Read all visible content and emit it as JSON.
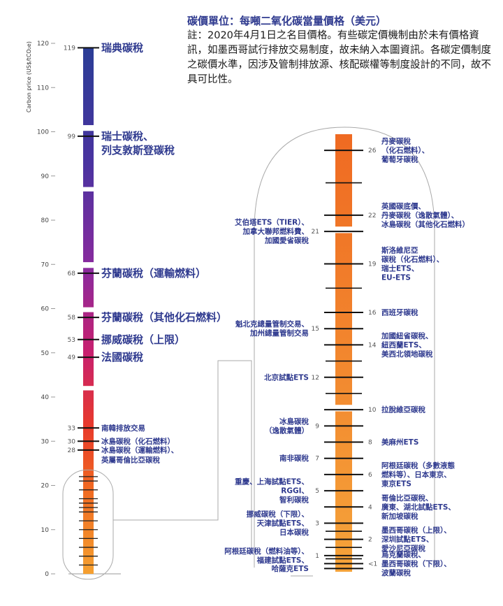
{
  "note": {
    "title": "碳價單位：每噸二氧化碳當量價格（美元）",
    "body": "註：2020年4月1日之名目價格。有些碳定價機制由於未有價格資訊，如墨西哥試行排放交易制度，故未納入本圖資訊。各碳定價制度之碳價水準，因涉及管制排放源、核配碳權等制度設計的不同，故不具可比性。"
  },
  "colors": {
    "gradient": [
      "#2b3d96",
      "#4a33a0",
      "#8a2a9e",
      "#c8206e",
      "#e83a2b",
      "#f06a22",
      "#f5a030"
    ],
    "label": "#2f3a8f"
  },
  "chart_data": [
    {
      "type": "bar",
      "orientation": "vertical-scale",
      "ylabel": "Carbon price (US$/tCO₂e)",
      "ylim": [
        0,
        120
      ],
      "yticks": [
        0,
        10,
        20,
        30,
        40,
        50,
        60,
        70,
        80,
        90,
        100,
        110,
        120
      ],
      "points": [
        {
          "value": 119,
          "value_label": "119",
          "label": "瑞典碳稅",
          "size": "big"
        },
        {
          "value": 99,
          "value_label": "99",
          "label": "瑞士碳稅、\n列支敦斯登碳稅",
          "size": "big"
        },
        {
          "value": 68,
          "value_label": "68",
          "label": "芬蘭碳稅（運輸燃料）",
          "size": "big"
        },
        {
          "value": 58,
          "value_label": "58",
          "label": "芬蘭碳稅（其他化石燃料）",
          "size": "big"
        },
        {
          "value": 53,
          "value_label": "53",
          "label": "挪威碳稅（上限）",
          "size": "big"
        },
        {
          "value": 49,
          "value_label": "49",
          "label": "法國碳稅",
          "size": "big"
        },
        {
          "value": 33,
          "value_label": "33",
          "label": "南韓排放交易",
          "size": "small"
        },
        {
          "value": 30,
          "value_label": "30",
          "label": "冰島碳稅（化石燃料）",
          "size": "small"
        },
        {
          "value": 28,
          "value_label": "28",
          "label": "冰島碳稅（運輸燃料）、\n英屬哥倫比亞碳稅",
          "size": "small"
        }
      ],
      "minor_ticks": [
        2,
        4,
        6,
        8,
        10,
        12,
        14,
        15,
        16,
        17,
        19,
        21,
        22
      ]
    },
    {
      "type": "bar",
      "orientation": "vertical-scale-zoom",
      "ylim": [
        0,
        27
      ],
      "points": [
        {
          "value": 26,
          "value_label": "26",
          "label": "丹麥碳稅\n（化石燃料）、\n葡萄牙碳稅",
          "side": "right"
        },
        {
          "value": 22,
          "value_label": "22",
          "label": "英國碳底價、\n丹麥碳稅（逸散氣體）、\n冰島碳稅（其他化石燃料）",
          "side": "right"
        },
        {
          "value": 21,
          "value_label": "21",
          "label": "艾伯塔ETS（TIER）、\n加拿大聯邦燃料費、\n加國愛省碳稅",
          "side": "left"
        },
        {
          "value": 19,
          "value_label": "19",
          "label": "斯洛維尼亞\n碳稅（化石燃料）、\n瑞士ETS、\nEU-ETS",
          "side": "right"
        },
        {
          "value": 16,
          "value_label": "16",
          "label": "西班牙碳稅",
          "side": "right"
        },
        {
          "value": 15,
          "value_label": "15",
          "label": "魁北克總量管制交易、\n加州總量管制交易",
          "side": "left"
        },
        {
          "value": 14,
          "value_label": "14",
          "label": "加國紐省碳稅、\n紐西蘭ETS、\n美西北領地碳稅",
          "side": "right"
        },
        {
          "value": 12,
          "value_label": "12",
          "label": "北京試點ETS",
          "side": "left"
        },
        {
          "value": 10,
          "value_label": "10",
          "label": "拉脫維亞碳稅",
          "side": "right"
        },
        {
          "value": 9,
          "value_label": "9",
          "label": "冰島碳稅\n（逸散氣體）",
          "side": "left"
        },
        {
          "value": 8,
          "value_label": "8",
          "label": "美麻州ETS",
          "side": "right"
        },
        {
          "value": 7,
          "value_label": "7",
          "label": "南非碳稅",
          "side": "left"
        },
        {
          "value": 6,
          "value_label": "6",
          "label": "阿根廷碳稅（多數液態\n燃料等）、日本東京、\n東京ETS",
          "side": "right"
        },
        {
          "value": 5,
          "value_label": "5",
          "label": "重慶、上海試點ETS、\nRGGI、\n智利碳稅",
          "side": "left"
        },
        {
          "value": 4,
          "value_label": "4",
          "label": "哥倫比亞碳稅、\n廣東、湖北試點ETS、\n新加坡碳稅",
          "side": "right"
        },
        {
          "value": 3,
          "value_label": "3",
          "label": "挪威碳稅（下限）、\n天津試點ETS、\n日本碳稅",
          "side": "left"
        },
        {
          "value": 2,
          "value_label": "2",
          "label": "墨西哥碳稅（上限）、\n深圳試點ETS、\n愛沙尼亞碳稅",
          "side": "right"
        },
        {
          "value": 1,
          "value_label": "1",
          "label": "阿根廷碳稅（燃料油等）、\n福建試點ETS、",
          "side": "left"
        },
        {
          "value": 0.5,
          "value_label": "<1",
          "label": "烏克蘭碳稅、\n墨西哥碳稅（下限）、\n波蘭碳稅",
          "side": "right"
        },
        {
          "value": 0.2,
          "value_label": "",
          "label": "哈薩克ETS",
          "side": "left"
        }
      ],
      "extra_ticks": [
        24,
        17.5,
        13,
        11,
        2.5,
        1.5,
        0.8
      ]
    }
  ]
}
